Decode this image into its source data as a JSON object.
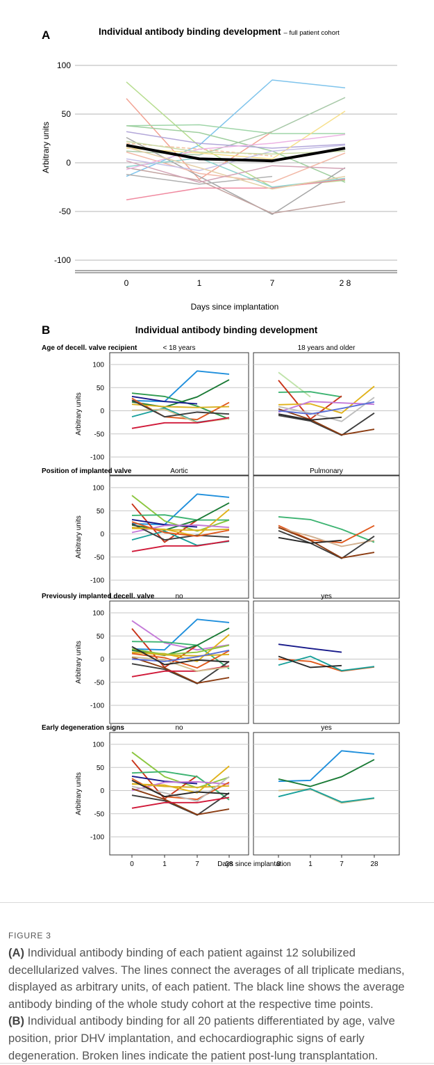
{
  "figure": {
    "panel_a_label": "A",
    "panel_b_label": "B",
    "caption_label": "FIGURE 3",
    "caption_a_label": "(A)",
    "caption_a_text": " Individual antibody binding of each patient against 12 solubilized decellularized valves. The lines connect the averages of all triplicate medians, displayed as arbitrary units, of each patient. The black line shows the average antibody binding of the whole study cohort at the respective time points.",
    "caption_b_label": "(B)",
    "caption_b_text": " Individual antibody binding for all 20 patients differentiated by age, valve position, prior DHV implantation, and echocardiographic signs of early degeneration. Broken lines indicate the patient post-lung transplantation."
  },
  "chart_data": [
    {
      "type": "line",
      "panel": "A",
      "title": "Individual antibody binding development",
      "subtitle": "– full patient cohort",
      "xlabel": "Days since implantation",
      "ylabel": "Arbitrary units",
      "x_ticks": [
        "0",
        "1",
        "7",
        "2 8"
      ],
      "y_ticks": [
        100,
        50,
        0,
        -50,
        -100
      ],
      "ylim": [
        -112,
        100
      ],
      "grid": true,
      "average": {
        "values": [
          18,
          4,
          2,
          15
        ],
        "color": "#000000"
      },
      "series": [
        {
          "color": "#7fc4ec",
          "values": [
            -14,
            18,
            85,
            77
          ]
        },
        {
          "color": "#b7dd8f",
          "values": [
            83,
            17,
            -25,
            -18
          ]
        },
        {
          "color": "#f2a394",
          "values": [
            66,
            -17,
            32,
            null
          ]
        },
        {
          "color": "#9fd5a8",
          "values": [
            38,
            39,
            30,
            30
          ]
        },
        {
          "color": "#9fcf9f",
          "values": [
            38,
            31,
            12,
            -20
          ]
        },
        {
          "color": "#a8c9a8",
          "values": [
            12,
            8,
            32,
            67
          ]
        },
        {
          "color": "#b3a7d9",
          "values": [
            32,
            20,
            15,
            19
          ]
        },
        {
          "color": "#f7e08c",
          "values": [
            15,
            10,
            4,
            53
          ]
        },
        {
          "color": "#f3c09c",
          "values": [
            20,
            14,
            7,
            null
          ],
          "dashed": true
        },
        {
          "color": "#a6a6a6",
          "values": [
            26,
            -14,
            -53,
            -5
          ]
        },
        {
          "color": "#b0b0b0",
          "values": [
            -12,
            -22,
            -14,
            null
          ]
        },
        {
          "color": "#c1a3a0",
          "values": [
            -5,
            -18,
            -52,
            -40
          ]
        },
        {
          "color": "#f08aa0",
          "values": [
            -38,
            -26,
            -26,
            -17
          ]
        },
        {
          "color": "#f2b8a6",
          "values": [
            11,
            -11,
            -20,
            10
          ]
        },
        {
          "color": "#8fd3cf",
          "values": [
            -4,
            5,
            -25,
            -16
          ]
        },
        {
          "color": "#ecb3e3",
          "values": [
            -7,
            14,
            20,
            29
          ]
        },
        {
          "color": "#c6c0e8",
          "values": [
            4,
            -8,
            12,
            18
          ]
        },
        {
          "color": "#e5cfa6",
          "values": [
            16,
            -5,
            -27,
            -14
          ]
        },
        {
          "color": "#d3a3b5",
          "values": [
            2,
            -20,
            -3,
            -6
          ]
        },
        {
          "color": "#c9d9a5",
          "values": [
            22,
            11,
            9,
            12
          ]
        }
      ]
    },
    {
      "type": "line",
      "panel": "B",
      "title": "Individual antibody binding development",
      "xlabel": "Days since implantation",
      "ylabel": "Arbitrary units",
      "x_ticks": [
        "0",
        "1",
        "7",
        "28"
      ],
      "y_ticks": [
        100,
        50,
        0,
        -50,
        -100
      ],
      "ylim": [
        -108,
        108
      ],
      "grid": true,
      "rows": [
        {
          "label": "Age of decell. valve recipient",
          "left_title": "< 18 years",
          "right_title": "18 years and older",
          "left": [
            {
              "color": "#1f8fdc",
              "values": [
                22,
                20,
                86,
                79
              ]
            },
            {
              "color": "#2e9a4e",
              "values": [
                38,
                31,
                10,
                -18
              ]
            },
            {
              "color": "#1a7a35",
              "values": [
                19,
                8,
                30,
                67
              ]
            },
            {
              "color": "#17198a",
              "values": [
                31,
                20,
                15,
                null
              ]
            },
            {
              "color": "#e05a1e",
              "values": [
                27,
                -13,
                -19,
                18
              ]
            },
            {
              "color": "#18a09a",
              "values": [
                -13,
                6,
                -25,
                -16
              ]
            },
            {
              "color": "#d1c08f",
              "values": [
                1,
                3,
                -26,
                -17
              ]
            },
            {
              "color": "#d8b020",
              "values": [
                14,
                9,
                7,
                9
              ]
            },
            {
              "color": "#3d3d3d",
              "values": [
                23,
                -13,
                -3,
                -7
              ]
            },
            {
              "color": "#d01838",
              "values": [
                -38,
                -26,
                -26,
                -15
              ]
            }
          ],
          "right": [
            {
              "color": "#bfe3a9",
              "values": [
                83,
                30,
                null,
                null
              ]
            },
            {
              "color": "#3cb371",
              "values": [
                40,
                41,
                30,
                null
              ]
            },
            {
              "color": "#c9341a",
              "values": [
                66,
                -18,
                32,
                null
              ]
            },
            {
              "color": "#e0b21a",
              "values": [
                13,
                15,
                -5,
                53
              ]
            },
            {
              "color": "#c47ad8",
              "values": [
                -3,
                20,
                17,
                14
              ]
            },
            {
              "color": "#bdbdbd",
              "values": [
                9,
                -5,
                -23,
                29
              ]
            },
            {
              "color": "#3d3d3d",
              "values": [
                -10,
                -22,
                -53,
                -5
              ]
            },
            {
              "color": "#8b3c12",
              "values": [
                4,
                -19,
                -52,
                -40
              ]
            },
            {
              "color": "#5a6fd6",
              "values": [
                0,
                -7,
                5,
                19
              ]
            },
            {
              "color": "#282828",
              "values": [
                -7,
                -20,
                -14,
                null
              ]
            }
          ]
        },
        {
          "label": "Position of implanted valve",
          "left_title": "Aortic",
          "right_title": "Pulmonary",
          "left": [
            {
              "color": "#1f8fdc",
              "values": [
                22,
                20,
                86,
                79
              ]
            },
            {
              "color": "#8cc63f",
              "values": [
                83,
                28,
                6,
                30
              ]
            },
            {
              "color": "#c9341a",
              "values": [
                65,
                -18,
                30,
                null
              ]
            },
            {
              "color": "#3cb371",
              "values": [
                40,
                41,
                30,
                30
              ]
            },
            {
              "color": "#1a7a35",
              "values": [
                19,
                8,
                30,
                67
              ]
            },
            {
              "color": "#17198a",
              "values": [
                31,
                20,
                15,
                null
              ]
            },
            {
              "color": "#e0b21a",
              "values": [
                12,
                10,
                -5,
                53
              ]
            },
            {
              "color": "#c47ad8",
              "values": [
                3,
                18,
                19,
                14
              ]
            },
            {
              "color": "#18a09a",
              "values": [
                -13,
                6,
                -25,
                -16
              ]
            },
            {
              "color": "#3d3d3d",
              "values": [
                22,
                -13,
                -3,
                -7
              ]
            },
            {
              "color": "#d01838",
              "values": [
                -38,
                -26,
                -26,
                -15
              ]
            },
            {
              "color": "#d8b020",
              "values": [
                14,
                9,
                8,
                10
              ]
            },
            {
              "color": "#e05a1e",
              "values": [
                26,
                3,
                -5,
                8
              ]
            }
          ],
          "right": [
            {
              "color": "#3cb371",
              "values": [
                37,
                31,
                10,
                -18
              ]
            },
            {
              "color": "#e05a1e",
              "values": [
                18,
                -13,
                -19,
                18
              ]
            },
            {
              "color": "#d1b08f",
              "values": [
                13,
                -5,
                -27,
                -14
              ]
            },
            {
              "color": "#3d3d3d",
              "values": [
                7,
                -20,
                -53,
                -5
              ]
            },
            {
              "color": "#8b3c12",
              "values": [
                14,
                -14,
                -52,
                -40
              ]
            },
            {
              "color": "#282828",
              "values": [
                -8,
                -20,
                -14,
                null
              ]
            }
          ]
        },
        {
          "label": "Previously implanted decell. valve",
          "left_title": "no",
          "right_title": "yes",
          "left": [
            {
              "color": "#1f8fdc",
              "values": [
                22,
                20,
                86,
                79
              ]
            },
            {
              "color": "#c47ad8",
              "values": [
                83,
                35,
                20,
                31
              ]
            },
            {
              "color": "#c9341a",
              "values": [
                66,
                -18,
                30,
                null
              ]
            },
            {
              "color": "#3cb371",
              "values": [
                38,
                37,
                30,
                -21
              ]
            },
            {
              "color": "#1a7a35",
              "values": [
                19,
                8,
                30,
                67
              ]
            },
            {
              "color": "#e0b21a",
              "values": [
                14,
                12,
                -5,
                53
              ]
            },
            {
              "color": "#8cc63f",
              "values": [
                22,
                10,
                15,
                30
              ]
            },
            {
              "color": "#e05a1e",
              "values": [
                12,
                3,
                -19,
                18
              ]
            },
            {
              "color": "#3d3d3d",
              "values": [
                -10,
                -22,
                -53,
                -5
              ]
            },
            {
              "color": "#8b3c12",
              "values": [
                4,
                -19,
                -52,
                -40
              ]
            },
            {
              "color": "#d01838",
              "values": [
                -38,
                -26,
                -26,
                -15
              ]
            },
            {
              "color": "#d8b020",
              "values": [
                15,
                9,
                7,
                10
              ]
            },
            {
              "color": "#d1c08f",
              "values": [
                5,
                -2,
                -26,
                -17
              ]
            },
            {
              "color": "#5a6fd6",
              "values": [
                0,
                -5,
                5,
                19
              ]
            },
            {
              "color": "#282828",
              "values": [
                27,
                -12,
                -2,
                -6
              ]
            }
          ],
          "right": [
            {
              "color": "#17198a",
              "values": [
                32,
                23,
                15,
                null
              ]
            },
            {
              "color": "#e05a1e",
              "values": [
                0,
                -5,
                -26,
                -17
              ]
            },
            {
              "color": "#18a09a",
              "values": [
                -13,
                6,
                -25,
                -16
              ]
            },
            {
              "color": "#282828",
              "values": [
                6,
                -18,
                -14,
                null
              ]
            }
          ]
        },
        {
          "label": "Early degeneration signs",
          "left_title": "no",
          "right_title": "yes",
          "left": [
            {
              "color": "#8cc63f",
              "values": [
                83,
                30,
                6,
                29
              ]
            },
            {
              "color": "#c9341a",
              "values": [
                66,
                -18,
                32,
                null
              ]
            },
            {
              "color": "#3cb371",
              "values": [
                38,
                41,
                30,
                -20
              ]
            },
            {
              "color": "#17198a",
              "values": [
                31,
                20,
                15,
                null
              ]
            },
            {
              "color": "#e0b21a",
              "values": [
                14,
                12,
                -5,
                53
              ]
            },
            {
              "color": "#c47ad8",
              "values": [
                0,
                18,
                19,
                14
              ]
            },
            {
              "color": "#e05a1e",
              "values": [
                26,
                -13,
                -19,
                18
              ]
            },
            {
              "color": "#3d3d3d",
              "values": [
                -10,
                -22,
                -53,
                -5
              ]
            },
            {
              "color": "#8b3c12",
              "values": [
                4,
                -19,
                -52,
                -40
              ]
            },
            {
              "color": "#d01838",
              "values": [
                -38,
                -26,
                -26,
                -15
              ]
            },
            {
              "color": "#d8b020",
              "values": [
                15,
                9,
                7,
                10
              ]
            },
            {
              "color": "#bdbdbd",
              "values": [
                9,
                -5,
                -23,
                30
              ]
            },
            {
              "color": "#282828",
              "values": [
                22,
                -13,
                -3,
                -7
              ]
            }
          ],
          "right": [
            {
              "color": "#1f8fdc",
              "values": [
                20,
                22,
                86,
                79
              ]
            },
            {
              "color": "#1a7a35",
              "values": [
                25,
                9,
                30,
                67
              ]
            },
            {
              "color": "#d1c08f",
              "values": [
                0,
                3,
                -27,
                -17
              ]
            },
            {
              "color": "#18a09a",
              "values": [
                -13,
                4,
                -25,
                -16
              ]
            }
          ]
        }
      ]
    }
  ]
}
